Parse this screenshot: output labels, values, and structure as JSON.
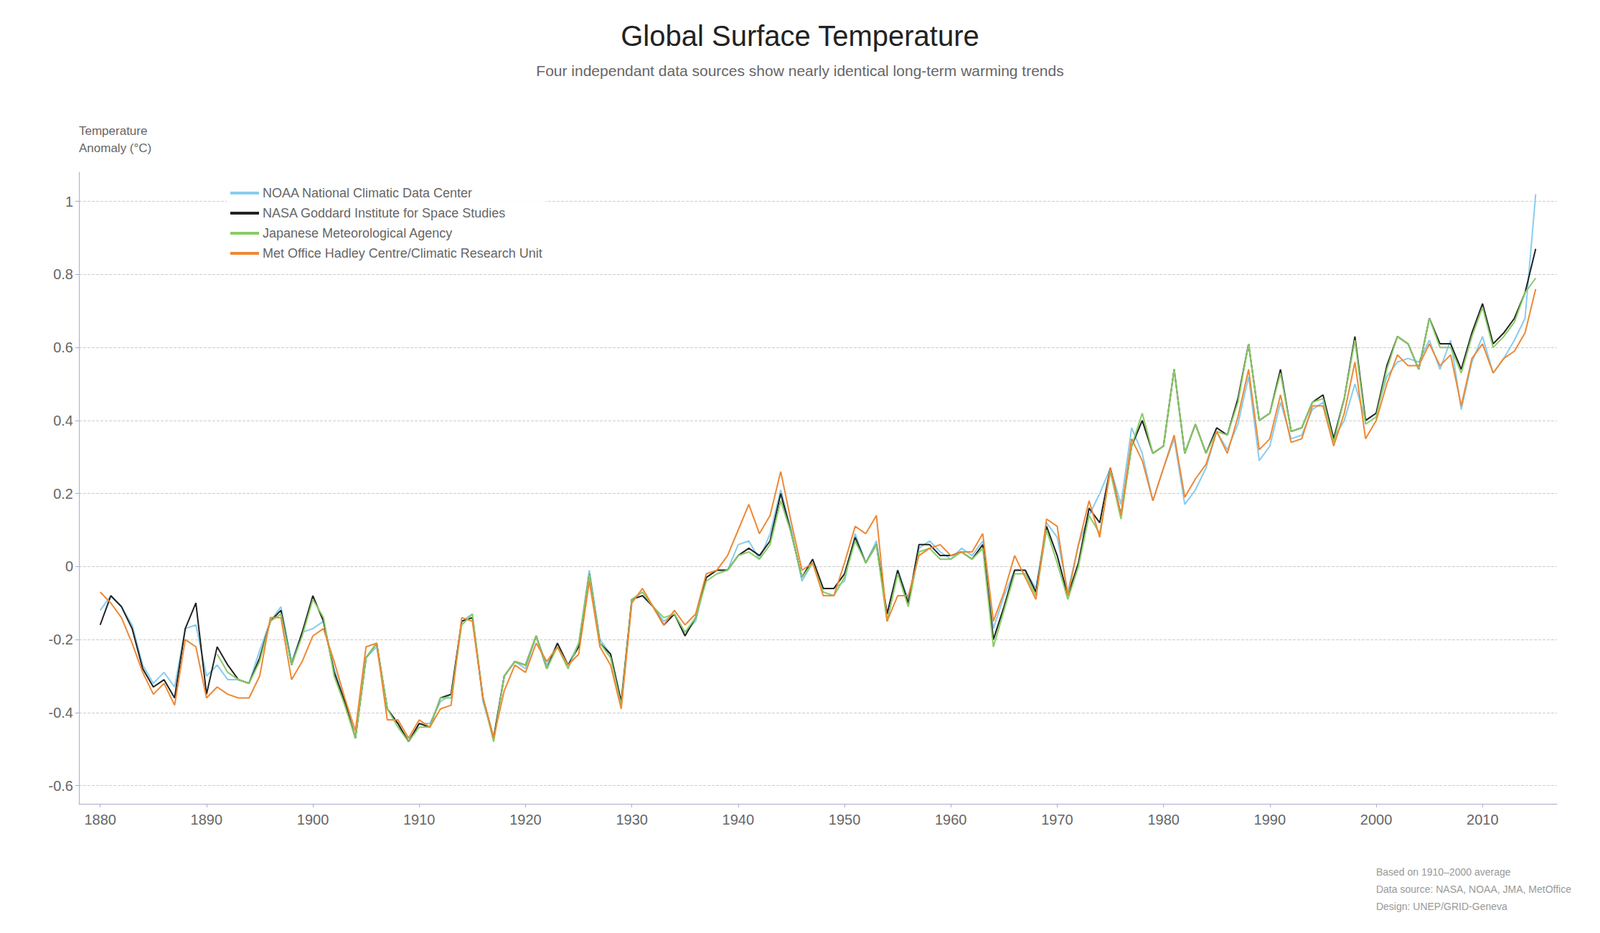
{
  "chart_data": {
    "type": "line",
    "title": "Global Surface Temperature",
    "subtitle": "Four independant data sources show nearly identical long-term warming trends",
    "ylabel": [
      "Temperature",
      "Anomaly (°C)"
    ],
    "footnote": [
      "Based on 1910–2000 average",
      "Data source: NASA, NOAA, JMA, MetOffice",
      "Design: UNEP/GRID-Geneva"
    ],
    "xlim": [
      1878,
      2017
    ],
    "xticks": [
      1880,
      1890,
      1900,
      1910,
      1920,
      1930,
      1940,
      1950,
      1960,
      1970,
      1980,
      1990,
      2000,
      2010
    ],
    "ylim": [
      -0.65,
      1.08
    ],
    "yticks": [
      -0.6,
      -0.4,
      -0.2,
      0,
      0.2,
      0.4,
      0.6,
      0.8,
      1
    ],
    "grid": true,
    "legend": "upper left",
    "series": [
      {
        "name": "NOAA National Climatic Data Center",
        "color": "#88ccee",
        "line_style": "solid",
        "x": [
          1880,
          1881,
          1882,
          1883,
          1884,
          1885,
          1886,
          1887,
          1888,
          1889,
          1890,
          1891,
          1892,
          1893,
          1894,
          1895,
          1896,
          1897,
          1898,
          1899,
          1900,
          1901,
          1902,
          1903,
          1904,
          1905,
          1906,
          1907,
          1908,
          1909,
          1910,
          1911,
          1912,
          1913,
          1914,
          1915,
          1916,
          1917,
          1918,
          1919,
          1920,
          1921,
          1922,
          1923,
          1924,
          1925,
          1926,
          1927,
          1928,
          1929,
          1930,
          1931,
          1932,
          1933,
          1934,
          1935,
          1936,
          1937,
          1938,
          1939,
          1940,
          1941,
          1942,
          1943,
          1944,
          1945,
          1946,
          1947,
          1948,
          1949,
          1950,
          1951,
          1952,
          1953,
          1954,
          1955,
          1956,
          1957,
          1958,
          1959,
          1960,
          1961,
          1962,
          1963,
          1964,
          1965,
          1966,
          1967,
          1968,
          1969,
          1970,
          1971,
          1972,
          1973,
          1974,
          1975,
          1976,
          1977,
          1978,
          1979,
          1980,
          1981,
          1982,
          1983,
          1984,
          1985,
          1986,
          1987,
          1988,
          1989,
          1990,
          1991,
          1992,
          1993,
          1994,
          1995,
          1996,
          1997,
          1998,
          1999,
          2000,
          2001,
          2002,
          2003,
          2004,
          2005,
          2006,
          2007,
          2008,
          2009,
          2010,
          2011,
          2012,
          2013,
          2014,
          2015
        ],
        "values": [
          -0.12,
          -0.08,
          -0.11,
          -0.16,
          -0.27,
          -0.32,
          -0.29,
          -0.33,
          -0.17,
          -0.16,
          -0.3,
          -0.27,
          -0.31,
          -0.31,
          -0.32,
          -0.23,
          -0.15,
          -0.11,
          -0.26,
          -0.18,
          -0.17,
          -0.15,
          -0.28,
          -0.37,
          -0.47,
          -0.25,
          -0.22,
          -0.39,
          -0.43,
          -0.48,
          -0.43,
          -0.43,
          -0.37,
          -0.35,
          -0.15,
          -0.13,
          -0.37,
          -0.47,
          -0.3,
          -0.26,
          -0.28,
          -0.19,
          -0.27,
          -0.21,
          -0.27,
          -0.21,
          -0.01,
          -0.2,
          -0.24,
          -0.38,
          -0.09,
          -0.07,
          -0.11,
          -0.15,
          -0.13,
          -0.18,
          -0.15,
          -0.03,
          -0.01,
          -0.01,
          0.06,
          0.07,
          0.02,
          0.09,
          0.21,
          0.1,
          -0.04,
          0.01,
          -0.06,
          -0.06,
          -0.04,
          0.09,
          0.01,
          0.07,
          -0.13,
          -0.01,
          -0.09,
          0.05,
          0.07,
          0.04,
          0.02,
          0.05,
          0.03,
          0.07,
          -0.17,
          -0.08,
          -0.01,
          -0.01,
          -0.06,
          0.12,
          0.08,
          -0.07,
          0.06,
          0.14,
          0.2,
          0.27,
          0.17,
          0.38,
          0.31,
          0.18,
          0.27,
          0.35,
          0.17,
          0.21,
          0.27,
          0.37,
          0.32,
          0.39,
          0.52,
          0.29,
          0.33,
          0.45,
          0.35,
          0.36,
          0.43,
          0.45,
          0.35,
          0.4,
          0.5,
          0.4,
          0.42,
          0.52,
          0.56,
          0.57,
          0.56,
          0.62,
          0.54,
          0.62,
          0.43,
          0.56,
          0.63,
          0.53,
          0.57,
          0.62,
          0.68,
          1.02
        ]
      },
      {
        "name": "NASA Goddard Institute for Space Studies",
        "color": "#222222",
        "line_style": "solid",
        "x": [
          1880,
          1881,
          1882,
          1883,
          1884,
          1885,
          1886,
          1887,
          1888,
          1889,
          1890,
          1891,
          1892,
          1893,
          1894,
          1895,
          1896,
          1897,
          1898,
          1899,
          1900,
          1901,
          1902,
          1903,
          1904,
          1905,
          1906,
          1907,
          1908,
          1909,
          1910,
          1911,
          1912,
          1913,
          1914,
          1915,
          1916,
          1917,
          1918,
          1919,
          1920,
          1921,
          1922,
          1923,
          1924,
          1925,
          1926,
          1927,
          1928,
          1929,
          1930,
          1931,
          1932,
          1933,
          1934,
          1935,
          1936,
          1937,
          1938,
          1939,
          1940,
          1941,
          1942,
          1943,
          1944,
          1945,
          1946,
          1947,
          1948,
          1949,
          1950,
          1951,
          1952,
          1953,
          1954,
          1955,
          1956,
          1957,
          1958,
          1959,
          1960,
          1961,
          1962,
          1963,
          1964,
          1965,
          1966,
          1967,
          1968,
          1969,
          1970,
          1971,
          1972,
          1973,
          1974,
          1975,
          1976,
          1977,
          1978,
          1979,
          1980,
          1981,
          1982,
          1983,
          1984,
          1985,
          1986,
          1987,
          1988,
          1989,
          1990,
          1991,
          1992,
          1993,
          1994,
          1995,
          1996,
          1997,
          1998,
          1999,
          2000,
          2001,
          2002,
          2003,
          2004,
          2005,
          2006,
          2007,
          2008,
          2009,
          2010,
          2011,
          2012,
          2013,
          2014,
          2015
        ],
        "values": [
          -0.16,
          -0.08,
          -0.11,
          -0.17,
          -0.28,
          -0.33,
          -0.31,
          -0.36,
          -0.17,
          -0.1,
          -0.35,
          -0.22,
          -0.27,
          -0.31,
          -0.32,
          -0.25,
          -0.15,
          -0.12,
          -0.27,
          -0.18,
          -0.08,
          -0.15,
          -0.29,
          -0.37,
          -0.47,
          -0.25,
          -0.21,
          -0.39,
          -0.43,
          -0.48,
          -0.43,
          -0.44,
          -0.36,
          -0.35,
          -0.15,
          -0.14,
          -0.36,
          -0.47,
          -0.3,
          -0.26,
          -0.27,
          -0.19,
          -0.28,
          -0.21,
          -0.27,
          -0.22,
          -0.02,
          -0.21,
          -0.24,
          -0.37,
          -0.09,
          -0.08,
          -0.11,
          -0.16,
          -0.13,
          -0.19,
          -0.14,
          -0.03,
          -0.01,
          -0.01,
          0.03,
          0.05,
          0.03,
          0.07,
          0.2,
          0.09,
          -0.03,
          0.02,
          -0.06,
          -0.06,
          -0.02,
          0.08,
          0.01,
          0.06,
          -0.13,
          -0.01,
          -0.1,
          0.06,
          0.06,
          0.03,
          0.03,
          0.04,
          0.02,
          0.06,
          -0.2,
          -0.11,
          -0.01,
          -0.01,
          -0.07,
          0.11,
          0.03,
          -0.08,
          0.01,
          0.16,
          0.12,
          0.27,
          0.14,
          0.33,
          0.4,
          0.31,
          0.33,
          0.54,
          0.31,
          0.39,
          0.31,
          0.38,
          0.36,
          0.46,
          0.61,
          0.4,
          0.42,
          0.54,
          0.37,
          0.38,
          0.45,
          0.47,
          0.35,
          0.46,
          0.63,
          0.4,
          0.42,
          0.55,
          0.63,
          0.61,
          0.54,
          0.68,
          0.61,
          0.61,
          0.54,
          0.64,
          0.72,
          0.61,
          0.64,
          0.68,
          0.75,
          0.87
        ]
      },
      {
        "name": "Japanese Meteorological Agency",
        "color": "#88cc66",
        "line_style": "solid",
        "x": [
          1891,
          1892,
          1893,
          1894,
          1895,
          1896,
          1897,
          1898,
          1899,
          1900,
          1901,
          1902,
          1903,
          1904,
          1905,
          1906,
          1907,
          1908,
          1909,
          1910,
          1911,
          1912,
          1913,
          1914,
          1915,
          1916,
          1917,
          1918,
          1919,
          1920,
          1921,
          1922,
          1923,
          1924,
          1925,
          1926,
          1927,
          1928,
          1929,
          1930,
          1931,
          1932,
          1933,
          1934,
          1935,
          1936,
          1937,
          1938,
          1939,
          1940,
          1941,
          1942,
          1943,
          1944,
          1945,
          1946,
          1947,
          1948,
          1949,
          1950,
          1951,
          1952,
          1953,
          1954,
          1955,
          1956,
          1957,
          1958,
          1959,
          1960,
          1961,
          1962,
          1963,
          1964,
          1965,
          1966,
          1967,
          1968,
          1969,
          1970,
          1971,
          1972,
          1973,
          1974,
          1975,
          1976,
          1977,
          1978,
          1979,
          1980,
          1981,
          1982,
          1983,
          1984,
          1985,
          1986,
          1987,
          1988,
          1989,
          1990,
          1991,
          1992,
          1993,
          1994,
          1995,
          1996,
          1997,
          1998,
          1999,
          2000,
          2001,
          2002,
          2003,
          2004,
          2005,
          2006,
          2007,
          2008,
          2009,
          2010,
          2011,
          2012,
          2013,
          2014,
          2015
        ],
        "values": [
          -0.24,
          -0.29,
          -0.31,
          -0.32,
          -0.26,
          -0.15,
          -0.13,
          -0.27,
          -0.19,
          -0.09,
          -0.14,
          -0.3,
          -0.38,
          -0.47,
          -0.25,
          -0.21,
          -0.39,
          -0.44,
          -0.48,
          -0.44,
          -0.44,
          -0.36,
          -0.36,
          -0.16,
          -0.13,
          -0.36,
          -0.48,
          -0.3,
          -0.26,
          -0.27,
          -0.19,
          -0.28,
          -0.22,
          -0.28,
          -0.21,
          -0.02,
          -0.21,
          -0.25,
          -0.38,
          -0.09,
          -0.07,
          -0.11,
          -0.14,
          -0.13,
          -0.18,
          -0.14,
          -0.04,
          -0.02,
          -0.01,
          0.03,
          0.04,
          0.02,
          0.06,
          0.18,
          0.09,
          -0.03,
          0.01,
          -0.07,
          -0.08,
          -0.03,
          0.07,
          0.01,
          0.06,
          -0.15,
          -0.02,
          -0.11,
          0.04,
          0.05,
          0.02,
          0.02,
          0.04,
          0.02,
          0.05,
          -0.22,
          -0.12,
          -0.02,
          -0.02,
          -0.08,
          0.1,
          0.01,
          -0.09,
          0.0,
          0.14,
          0.09,
          0.26,
          0.13,
          0.33,
          0.42,
          0.31,
          0.33,
          0.54,
          0.31,
          0.39,
          0.31,
          0.37,
          0.36,
          0.45,
          0.61,
          0.4,
          0.42,
          0.53,
          0.37,
          0.38,
          0.45,
          0.46,
          0.34,
          0.46,
          0.62,
          0.39,
          0.41,
          0.54,
          0.63,
          0.61,
          0.54,
          0.68,
          0.6,
          0.6,
          0.53,
          0.63,
          0.71,
          0.6,
          0.63,
          0.67,
          0.75,
          0.79
        ]
      },
      {
        "name": "Met Office Hadley Centre/Climatic Research Unit",
        "color": "#ee8833",
        "line_style": "solid",
        "x": [
          1880,
          1881,
          1882,
          1883,
          1884,
          1885,
          1886,
          1887,
          1888,
          1889,
          1890,
          1891,
          1892,
          1893,
          1894,
          1895,
          1896,
          1897,
          1898,
          1899,
          1900,
          1901,
          1902,
          1903,
          1904,
          1905,
          1906,
          1907,
          1908,
          1909,
          1910,
          1911,
          1912,
          1913,
          1914,
          1915,
          1916,
          1917,
          1918,
          1919,
          1920,
          1921,
          1922,
          1923,
          1924,
          1925,
          1926,
          1927,
          1928,
          1929,
          1930,
          1931,
          1932,
          1933,
          1934,
          1935,
          1936,
          1937,
          1938,
          1939,
          1940,
          1941,
          1942,
          1943,
          1944,
          1945,
          1946,
          1947,
          1948,
          1949,
          1950,
          1951,
          1952,
          1953,
          1954,
          1955,
          1956,
          1957,
          1958,
          1959,
          1960,
          1961,
          1962,
          1963,
          1964,
          1965,
          1966,
          1967,
          1968,
          1969,
          1970,
          1971,
          1972,
          1973,
          1974,
          1975,
          1976,
          1977,
          1978,
          1979,
          1980,
          1981,
          1982,
          1983,
          1984,
          1985,
          1986,
          1987,
          1988,
          1989,
          1990,
          1991,
          1992,
          1993,
          1994,
          1995,
          1996,
          1997,
          1998,
          1999,
          2000,
          2001,
          2002,
          2003,
          2004,
          2005,
          2006,
          2007,
          2008,
          2009,
          2010,
          2011,
          2012,
          2013,
          2014,
          2015
        ],
        "values": [
          -0.07,
          -0.1,
          -0.14,
          -0.21,
          -0.29,
          -0.35,
          -0.32,
          -0.38,
          -0.2,
          -0.22,
          -0.36,
          -0.33,
          -0.35,
          -0.36,
          -0.36,
          -0.3,
          -0.14,
          -0.14,
          -0.31,
          -0.26,
          -0.19,
          -0.17,
          -0.26,
          -0.36,
          -0.45,
          -0.22,
          -0.21,
          -0.42,
          -0.42,
          -0.47,
          -0.42,
          -0.44,
          -0.39,
          -0.38,
          -0.14,
          -0.15,
          -0.36,
          -0.47,
          -0.34,
          -0.27,
          -0.29,
          -0.21,
          -0.26,
          -0.22,
          -0.27,
          -0.24,
          -0.04,
          -0.22,
          -0.27,
          -0.39,
          -0.1,
          -0.06,
          -0.11,
          -0.16,
          -0.12,
          -0.16,
          -0.13,
          -0.02,
          -0.01,
          0.03,
          0.1,
          0.17,
          0.09,
          0.14,
          0.26,
          0.12,
          -0.01,
          0.01,
          -0.08,
          -0.08,
          0.01,
          0.11,
          0.09,
          0.14,
          -0.15,
          -0.08,
          -0.08,
          0.03,
          0.05,
          0.06,
          0.03,
          0.04,
          0.04,
          0.09,
          -0.15,
          -0.07,
          0.03,
          -0.03,
          -0.09,
          0.13,
          0.11,
          -0.08,
          0.06,
          0.18,
          0.08,
          0.27,
          0.14,
          0.35,
          0.29,
          0.18,
          0.27,
          0.36,
          0.19,
          0.24,
          0.28,
          0.37,
          0.31,
          0.41,
          0.54,
          0.32,
          0.35,
          0.47,
          0.34,
          0.35,
          0.44,
          0.44,
          0.33,
          0.42,
          0.56,
          0.35,
          0.4,
          0.5,
          0.58,
          0.55,
          0.55,
          0.61,
          0.55,
          0.58,
          0.44,
          0.57,
          0.61,
          0.53,
          0.57,
          0.59,
          0.64,
          0.76
        ]
      }
    ]
  }
}
